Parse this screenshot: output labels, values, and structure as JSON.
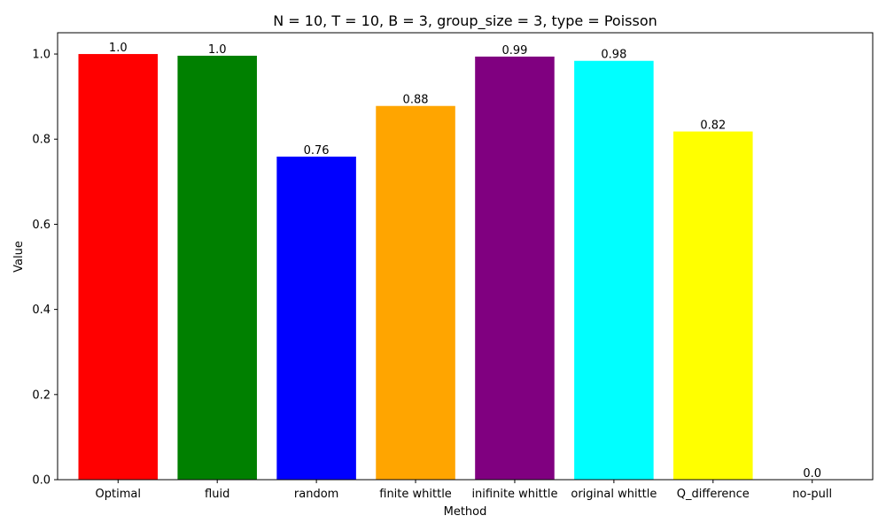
{
  "chart_data": {
    "type": "bar",
    "title": "N = 10, T = 10, B = 3, group_size = 3, type = Poisson",
    "xlabel": "Method",
    "ylabel": "Value",
    "ylim": [
      0,
      1.05
    ],
    "yticks": [
      "0.0",
      "0.2",
      "0.4",
      "0.6",
      "0.8",
      "1.0"
    ],
    "grid": false,
    "categories": [
      "Optimal",
      "fluid",
      "random",
      "finite whittle",
      "inifinite whittle",
      "original whittle",
      "Q_difference",
      "no-pull"
    ],
    "values": [
      1.0,
      0.996,
      0.759,
      0.878,
      0.994,
      0.984,
      0.818,
      0.0
    ],
    "data_labels": [
      "1.0",
      "1.0",
      "0.76",
      "0.88",
      "0.99",
      "0.98",
      "0.82",
      "0.0"
    ],
    "colors": [
      "#ff0000",
      "#008000",
      "#0000ff",
      "#ffa500",
      "#800080",
      "#00ffff",
      "#ffff00",
      "#ffffff"
    ]
  }
}
